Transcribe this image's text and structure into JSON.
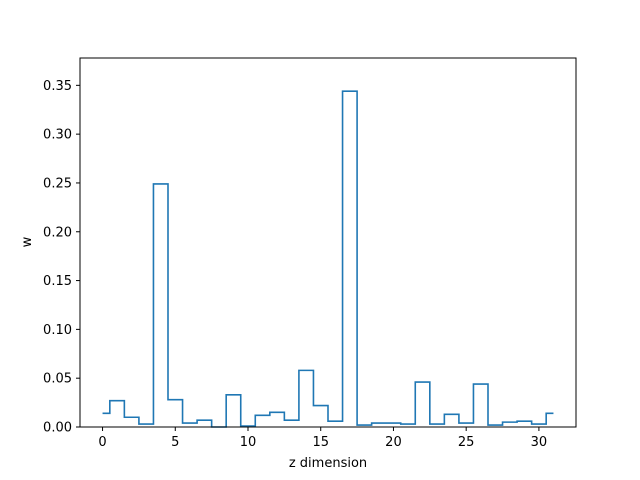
{
  "chart_data": {
    "type": "step",
    "title": "",
    "xlabel": "z dimension",
    "ylabel": "w",
    "xlim": [
      -1.55,
      32.55
    ],
    "ylim": [
      0,
      0.378
    ],
    "xticks": [
      0,
      5,
      10,
      15,
      20,
      25,
      30
    ],
    "yticks": [
      0.0,
      0.05,
      0.1,
      0.15,
      0.2,
      0.25,
      0.3,
      0.35
    ],
    "ytick_labels": [
      "0.00",
      "0.05",
      "0.10",
      "0.15",
      "0.20",
      "0.25",
      "0.30",
      "0.35"
    ],
    "grid": false,
    "line_color": "#1f77b4",
    "step_where": "mid",
    "x": [
      0,
      1,
      2,
      3,
      4,
      5,
      6,
      7,
      8,
      9,
      10,
      11,
      12,
      13,
      14,
      15,
      16,
      17,
      18,
      19,
      20,
      21,
      22,
      23,
      24,
      25,
      26,
      27,
      28,
      29,
      30,
      31
    ],
    "values": [
      0.014,
      0.027,
      0.01,
      0.003,
      0.249,
      0.028,
      0.004,
      0.007,
      0.0,
      0.033,
      0.001,
      0.012,
      0.015,
      0.007,
      0.058,
      0.022,
      0.006,
      0.344,
      0.002,
      0.004,
      0.004,
      0.003,
      0.046,
      0.003,
      0.013,
      0.004,
      0.044,
      0.002,
      0.005,
      0.006,
      0.003,
      0.014
    ]
  }
}
